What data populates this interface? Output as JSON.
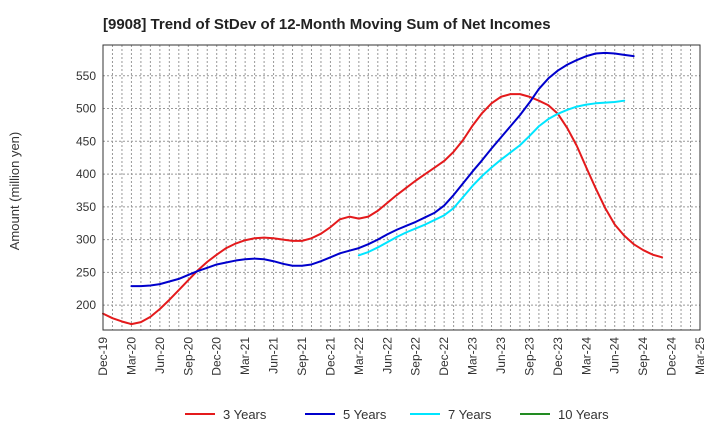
{
  "chart_data": {
    "type": "line",
    "title": "[9908]  Trend of StDev of 12-Month Moving Sum of Net Incomes",
    "ylabel": "Amount (million yen)",
    "xlabel": "",
    "ylim": [
      162,
      597
    ],
    "yticks": [
      200,
      250,
      300,
      350,
      400,
      450,
      500,
      550
    ],
    "x_start": "Dec-19",
    "x_end": "Mar-25",
    "xticks": [
      "Dec-19",
      "Mar-20",
      "Jun-20",
      "Sep-20",
      "Dec-20",
      "Mar-21",
      "Jun-21",
      "Sep-21",
      "Dec-21",
      "Mar-22",
      "Jun-22",
      "Sep-22",
      "Dec-22",
      "Mar-23",
      "Jun-23",
      "Sep-23",
      "Dec-23",
      "Mar-24",
      "Jun-24",
      "Sep-24",
      "Dec-24",
      "Mar-25"
    ],
    "grid": true,
    "legend_position": "bottom",
    "series": [
      {
        "name": "3 Years",
        "color": "#e41a1c",
        "x_start_index": 0,
        "values": [
          187,
          180,
          175,
          171,
          174,
          182,
          194,
          208,
          223,
          238,
          253,
          266,
          277,
          287,
          294,
          299,
          302,
          303,
          302,
          300,
          298,
          298,
          302,
          309,
          319,
          331,
          335,
          332,
          335,
          344,
          356,
          368,
          379,
          390,
          400,
          410,
          420,
          434,
          452,
          474,
          493,
          508,
          518,
          522,
          522,
          518,
          512,
          505,
          492,
          470,
          443,
          410,
          378,
          348,
          323,
          306,
          293,
          284,
          277,
          273
        ]
      },
      {
        "name": "5 Years",
        "color": "#0000cc",
        "x_start_index": 3,
        "values": [
          229,
          229,
          230,
          232,
          236,
          240,
          246,
          252,
          257,
          262,
          265,
          268,
          270,
          271,
          270,
          267,
          263,
          260,
          260,
          262,
          267,
          273,
          279,
          283,
          287,
          293,
          300,
          308,
          315,
          321,
          327,
          334,
          341,
          352,
          368,
          386,
          404,
          421,
          439,
          456,
          473,
          490,
          509,
          530,
          546,
          558,
          567,
          574,
          580,
          584,
          585,
          584,
          582,
          580
        ]
      },
      {
        "name": "7 Years",
        "color": "#00e5ff",
        "x_start_index": 27,
        "values": [
          276,
          281,
          288,
          296,
          304,
          311,
          317,
          323,
          330,
          337,
          348,
          365,
          382,
          397,
          410,
          422,
          433,
          444,
          458,
          473,
          484,
          492,
          498,
          503,
          506,
          508,
          509,
          510,
          512
        ]
      },
      {
        "name": "10 Years",
        "color": "#228b22",
        "x_start_index": null,
        "values": []
      }
    ]
  }
}
